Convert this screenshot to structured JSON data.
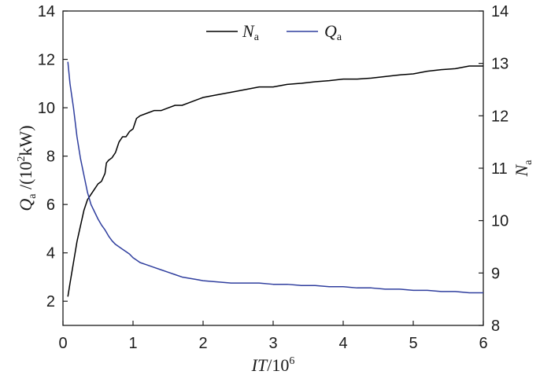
{
  "chart_data": {
    "type": "line",
    "title": "",
    "x": [
      0.07,
      0.1,
      0.15,
      0.2,
      0.25,
      0.3,
      0.35,
      0.4,
      0.45,
      0.5,
      0.55,
      0.6,
      0.62,
      0.65,
      0.7,
      0.75,
      0.8,
      0.85,
      0.9,
      0.95,
      1.0,
      1.05,
      1.1,
      1.2,
      1.3,
      1.4,
      1.5,
      1.6,
      1.7,
      1.8,
      1.9,
      2.0,
      2.2,
      2.4,
      2.6,
      2.8,
      3.0,
      3.2,
      3.4,
      3.6,
      3.8,
      4.0,
      4.2,
      4.4,
      4.6,
      4.8,
      5.0,
      5.2,
      5.4,
      5.6,
      5.8,
      6.0
    ],
    "xlabel_main": "IT",
    "xlabel_rest": "/10",
    "xlabel_sup": "6",
    "xlim": [
      0,
      6
    ],
    "xticks": [
      0,
      1,
      2,
      3,
      4,
      5,
      6
    ],
    "y_left": {
      "label_main": "Q",
      "label_sub": "a",
      "label_rest": " /(10",
      "label_sup": "2",
      "label_end": "kW)",
      "lim": [
        1,
        14
      ],
      "ticks": [
        2,
        4,
        6,
        8,
        10,
        12,
        14
      ]
    },
    "y_right": {
      "label_main": "N",
      "label_sub": "a",
      "lim": [
        8,
        14
      ],
      "ticks": [
        8,
        9,
        10,
        11,
        12,
        13,
        14
      ]
    },
    "series": [
      {
        "name_main": "N",
        "name_sub": "a",
        "axis": "right",
        "color": "#000000",
        "values": [
          8.55,
          8.8,
          9.2,
          9.6,
          9.9,
          10.2,
          10.4,
          10.5,
          10.6,
          10.7,
          10.75,
          10.9,
          11.1,
          11.15,
          11.2,
          11.3,
          11.5,
          11.6,
          11.6,
          11.7,
          11.75,
          11.95,
          12.0,
          12.05,
          12.1,
          12.1,
          12.15,
          12.2,
          12.2,
          12.25,
          12.3,
          12.35,
          12.4,
          12.45,
          12.5,
          12.55,
          12.55,
          12.6,
          12.62,
          12.65,
          12.67,
          12.7,
          12.7,
          12.72,
          12.75,
          12.78,
          12.8,
          12.85,
          12.88,
          12.9,
          12.95,
          12.95
        ]
      },
      {
        "name_main": "Q",
        "name_sub": "a",
        "axis": "left",
        "color": "#2f3e9e",
        "values": [
          11.9,
          11.0,
          10.0,
          8.8,
          7.9,
          7.2,
          6.5,
          6.0,
          5.7,
          5.4,
          5.15,
          4.95,
          4.85,
          4.7,
          4.5,
          4.35,
          4.25,
          4.15,
          4.05,
          3.95,
          3.8,
          3.7,
          3.6,
          3.5,
          3.4,
          3.3,
          3.2,
          3.1,
          3.0,
          2.95,
          2.9,
          2.85,
          2.8,
          2.75,
          2.75,
          2.75,
          2.7,
          2.7,
          2.65,
          2.65,
          2.6,
          2.6,
          2.55,
          2.55,
          2.5,
          2.5,
          2.45,
          2.45,
          2.4,
          2.4,
          2.35,
          2.35
        ]
      }
    ],
    "grid": false,
    "legend_position": "top-center"
  }
}
